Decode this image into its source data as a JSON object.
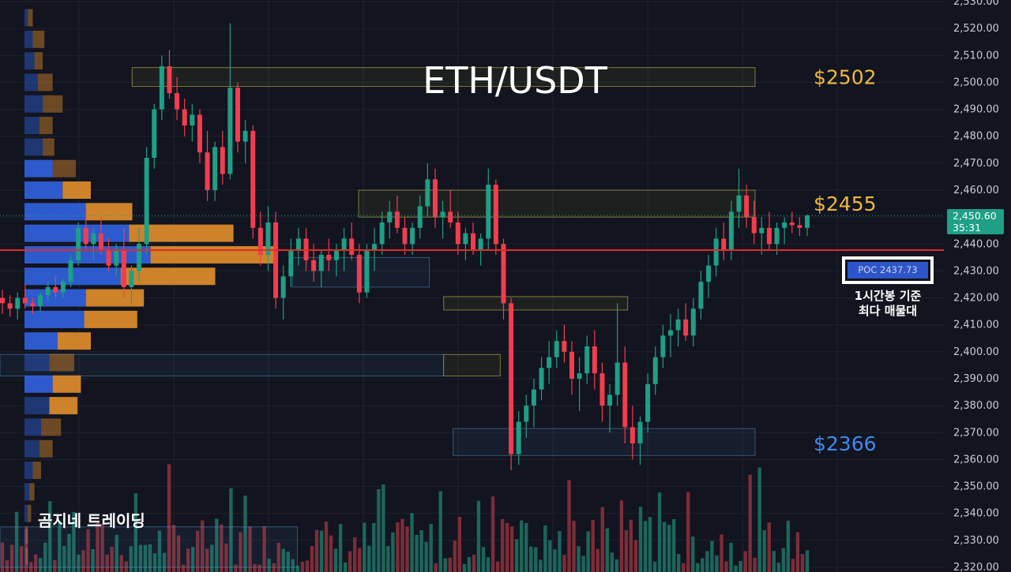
{
  "chart_data": {
    "type": "candlestick",
    "title": "ETH/USDT",
    "y_axis": {
      "min": 2320,
      "max": 2530,
      "step": 10,
      "ticks": [
        "2,530.00",
        "2,520.00",
        "2,510.00",
        "2,500.00",
        "2,490.00",
        "2,480.00",
        "2,470.00",
        "2,460.00",
        "2,450.00",
        "2,440.00",
        "2,430.00",
        "2,420.00",
        "2,410.00",
        "2,400.00",
        "2,390.00",
        "2,380.00",
        "2,370.00",
        "2,360.00",
        "2,350.00",
        "2,340.00",
        "2,330.00",
        "2,320.00"
      ]
    },
    "current_price": {
      "value": "2,450.60",
      "countdown": "35:31",
      "price": 2450.6
    },
    "poc": {
      "label": "POC  2437.73",
      "price": 2437.73,
      "note_line1": "1시간봉 기준",
      "note_line2": "최다 매물대"
    },
    "levels": [
      {
        "label": "$2502",
        "price": 2502,
        "color": "#f0b93a"
      },
      {
        "label": "$2455",
        "price": 2455,
        "color": "#f0b93a"
      },
      {
        "label": "$2366",
        "price": 2366,
        "color": "#3d8bf0"
      }
    ],
    "zones": [
      {
        "top": 2505.5,
        "bottom": 2498.5,
        "x0": 0.14,
        "x1": 0.8,
        "kind": "supply"
      },
      {
        "top": 2460,
        "bottom": 2450,
        "x0": 0.38,
        "x1": 0.8,
        "kind": "supply"
      },
      {
        "top": 2420.5,
        "bottom": 2415.5,
        "x0": 0.47,
        "x1": 0.665,
        "kind": "supply"
      },
      {
        "top": 2399,
        "bottom": 2391,
        "x0": 0.47,
        "x1": 0.53,
        "kind": "supply"
      },
      {
        "top": 2371.5,
        "bottom": 2361.5,
        "x0": 0.48,
        "x1": 0.8,
        "kind": "demand"
      },
      {
        "top": 2435,
        "bottom": 2424,
        "x0": 0.31,
        "x1": 0.455,
        "kind": "demand"
      },
      {
        "top": 2399,
        "bottom": 2391,
        "x0": 0.0,
        "x1": 0.47,
        "kind": "demand"
      },
      {
        "top": 2335,
        "bottom": 2320,
        "x0": 0.0,
        "x1": 0.315,
        "kind": "demand"
      }
    ],
    "candles": [
      [
        2420,
        2423,
        2414,
        2418
      ],
      [
        2418,
        2421,
        2413,
        2416
      ],
      [
        2416,
        2422,
        2412,
        2420
      ],
      [
        2420,
        2425,
        2416,
        2418
      ],
      [
        2418,
        2420,
        2414,
        2417
      ],
      [
        2417,
        2422,
        2415,
        2421
      ],
      [
        2421,
        2426,
        2419,
        2424
      ],
      [
        2424,
        2428,
        2420,
        2422
      ],
      [
        2422,
        2427,
        2420,
        2426
      ],
      [
        2426,
        2436,
        2424,
        2434
      ],
      [
        2434,
        2448,
        2432,
        2446
      ],
      [
        2446,
        2452,
        2438,
        2440
      ],
      [
        2440,
        2446,
        2434,
        2444
      ],
      [
        2444,
        2450,
        2436,
        2438
      ],
      [
        2438,
        2442,
        2430,
        2432
      ],
      [
        2432,
        2440,
        2428,
        2438
      ],
      [
        2438,
        2446,
        2420,
        2424
      ],
      [
        2424,
        2432,
        2418,
        2430
      ],
      [
        2430,
        2446,
        2426,
        2440
      ],
      [
        2440,
        2476,
        2436,
        2472
      ],
      [
        2472,
        2492,
        2468,
        2490
      ],
      [
        2490,
        2510,
        2486,
        2506
      ],
      [
        2506,
        2512,
        2494,
        2496
      ],
      [
        2496,
        2502,
        2486,
        2490
      ],
      [
        2490,
        2494,
        2480,
        2484
      ],
      [
        2484,
        2492,
        2478,
        2488
      ],
      [
        2488,
        2490,
        2470,
        2474
      ],
      [
        2474,
        2482,
        2456,
        2460
      ],
      [
        2460,
        2478,
        2456,
        2476
      ],
      [
        2476,
        2482,
        2462,
        2466
      ],
      [
        2466,
        2522,
        2464,
        2498
      ],
      [
        2498,
        2500,
        2474,
        2478
      ],
      [
        2478,
        2486,
        2470,
        2482
      ],
      [
        2482,
        2484,
        2442,
        2446
      ],
      [
        2446,
        2452,
        2432,
        2436
      ],
      [
        2436,
        2454,
        2430,
        2448
      ],
      [
        2448,
        2452,
        2416,
        2420
      ],
      [
        2420,
        2432,
        2412,
        2428
      ],
      [
        2428,
        2442,
        2424,
        2438
      ],
      [
        2438,
        2446,
        2432,
        2442
      ],
      [
        2442,
        2446,
        2430,
        2434
      ],
      [
        2434,
        2440,
        2426,
        2430
      ],
      [
        2430,
        2438,
        2424,
        2436
      ],
      [
        2436,
        2442,
        2430,
        2434
      ],
      [
        2434,
        2440,
        2428,
        2438
      ],
      [
        2438,
        2446,
        2430,
        2442
      ],
      [
        2442,
        2448,
        2434,
        2436
      ],
      [
        2436,
        2440,
        2418,
        2422
      ],
      [
        2422,
        2440,
        2420,
        2438
      ],
      [
        2438,
        2446,
        2430,
        2440
      ],
      [
        2440,
        2452,
        2436,
        2448
      ],
      [
        2448,
        2456,
        2442,
        2452
      ],
      [
        2452,
        2458,
        2444,
        2446
      ],
      [
        2446,
        2450,
        2436,
        2440
      ],
      [
        2440,
        2448,
        2436,
        2446
      ],
      [
        2446,
        2458,
        2442,
        2454
      ],
      [
        2454,
        2470,
        2450,
        2464
      ],
      [
        2464,
        2468,
        2446,
        2450
      ],
      [
        2450,
        2456,
        2442,
        2452
      ],
      [
        2452,
        2460,
        2446,
        2448
      ],
      [
        2448,
        2452,
        2436,
        2440
      ],
      [
        2440,
        2446,
        2434,
        2444
      ],
      [
        2444,
        2448,
        2436,
        2438
      ],
      [
        2438,
        2444,
        2432,
        2442
      ],
      [
        2442,
        2468,
        2438,
        2462
      ],
      [
        2462,
        2464,
        2436,
        2440
      ],
      [
        2440,
        2442,
        2412,
        2418
      ],
      [
        2418,
        2420,
        2356,
        2362
      ],
      [
        2362,
        2378,
        2358,
        2374
      ],
      [
        2374,
        2384,
        2368,
        2380
      ],
      [
        2380,
        2390,
        2372,
        2386
      ],
      [
        2386,
        2398,
        2382,
        2394
      ],
      [
        2394,
        2404,
        2388,
        2398
      ],
      [
        2398,
        2408,
        2394,
        2404
      ],
      [
        2404,
        2410,
        2396,
        2400
      ],
      [
        2400,
        2404,
        2384,
        2390
      ],
      [
        2390,
        2398,
        2378,
        2392
      ],
      [
        2392,
        2406,
        2388,
        2402
      ],
      [
        2402,
        2408,
        2386,
        2392
      ],
      [
        2392,
        2396,
        2374,
        2380
      ],
      [
        2380,
        2388,
        2370,
        2384
      ],
      [
        2384,
        2418,
        2380,
        2396
      ],
      [
        2396,
        2402,
        2366,
        2372
      ],
      [
        2372,
        2380,
        2360,
        2366
      ],
      [
        2366,
        2376,
        2358,
        2374
      ],
      [
        2374,
        2392,
        2370,
        2388
      ],
      [
        2388,
        2402,
        2384,
        2398
      ],
      [
        2398,
        2410,
        2394,
        2406
      ],
      [
        2406,
        2414,
        2398,
        2408
      ],
      [
        2408,
        2416,
        2402,
        2412
      ],
      [
        2412,
        2418,
        2404,
        2406
      ],
      [
        2406,
        2420,
        2402,
        2416
      ],
      [
        2416,
        2430,
        2412,
        2426
      ],
      [
        2426,
        2436,
        2420,
        2432
      ],
      [
        2432,
        2446,
        2428,
        2442
      ],
      [
        2442,
        2448,
        2434,
        2438
      ],
      [
        2438,
        2456,
        2434,
        2452
      ],
      [
        2452,
        2468,
        2446,
        2458
      ],
      [
        2458,
        2462,
        2446,
        2450
      ],
      [
        2450,
        2456,
        2440,
        2444
      ],
      [
        2444,
        2450,
        2436,
        2446
      ],
      [
        2446,
        2452,
        2438,
        2440
      ],
      [
        2440,
        2448,
        2436,
        2446
      ],
      [
        2446,
        2450,
        2440,
        2448
      ],
      [
        2448,
        2452,
        2444,
        2447
      ],
      [
        2447,
        2450,
        2443,
        2446
      ],
      [
        2446,
        2451,
        2443,
        2450.6
      ]
    ],
    "volume_profile": [
      [
        2524,
        4,
        6
      ],
      [
        2516,
        10,
        14
      ],
      [
        2508,
        12,
        10
      ],
      [
        2500,
        16,
        18
      ],
      [
        2492,
        22,
        24
      ],
      [
        2484,
        18,
        16
      ],
      [
        2476,
        22,
        14
      ],
      [
        2468,
        34,
        28
      ],
      [
        2460,
        46,
        34
      ],
      [
        2452,
        74,
        56
      ],
      [
        2444,
        126,
        126
      ],
      [
        2436,
        152,
        150
      ],
      [
        2428,
        116,
        114
      ],
      [
        2420,
        74,
        70
      ],
      [
        2412,
        72,
        64
      ],
      [
        2404,
        40,
        40
      ],
      [
        2396,
        30,
        30
      ],
      [
        2388,
        34,
        34
      ],
      [
        2380,
        30,
        34
      ],
      [
        2372,
        20,
        24
      ],
      [
        2364,
        18,
        16
      ],
      [
        2356,
        10,
        10
      ],
      [
        2348,
        6,
        6
      ],
      [
        2340,
        4,
        4
      ],
      [
        2332,
        2,
        2
      ],
      [
        2324,
        2,
        2
      ]
    ],
    "volume_bars": 170
  },
  "brand": "곰지네 트레이딩",
  "colors": {
    "up": "#1e9f86",
    "down": "#f23d4f",
    "bg": "#12141f",
    "grid": "#1f2230",
    "poc_line": "#e02a2a",
    "vp_up": "#2f5fd8",
    "vp_down": "#d9892b",
    "level_gold": "#f0b93a",
    "level_blue": "#3d8bf0"
  }
}
